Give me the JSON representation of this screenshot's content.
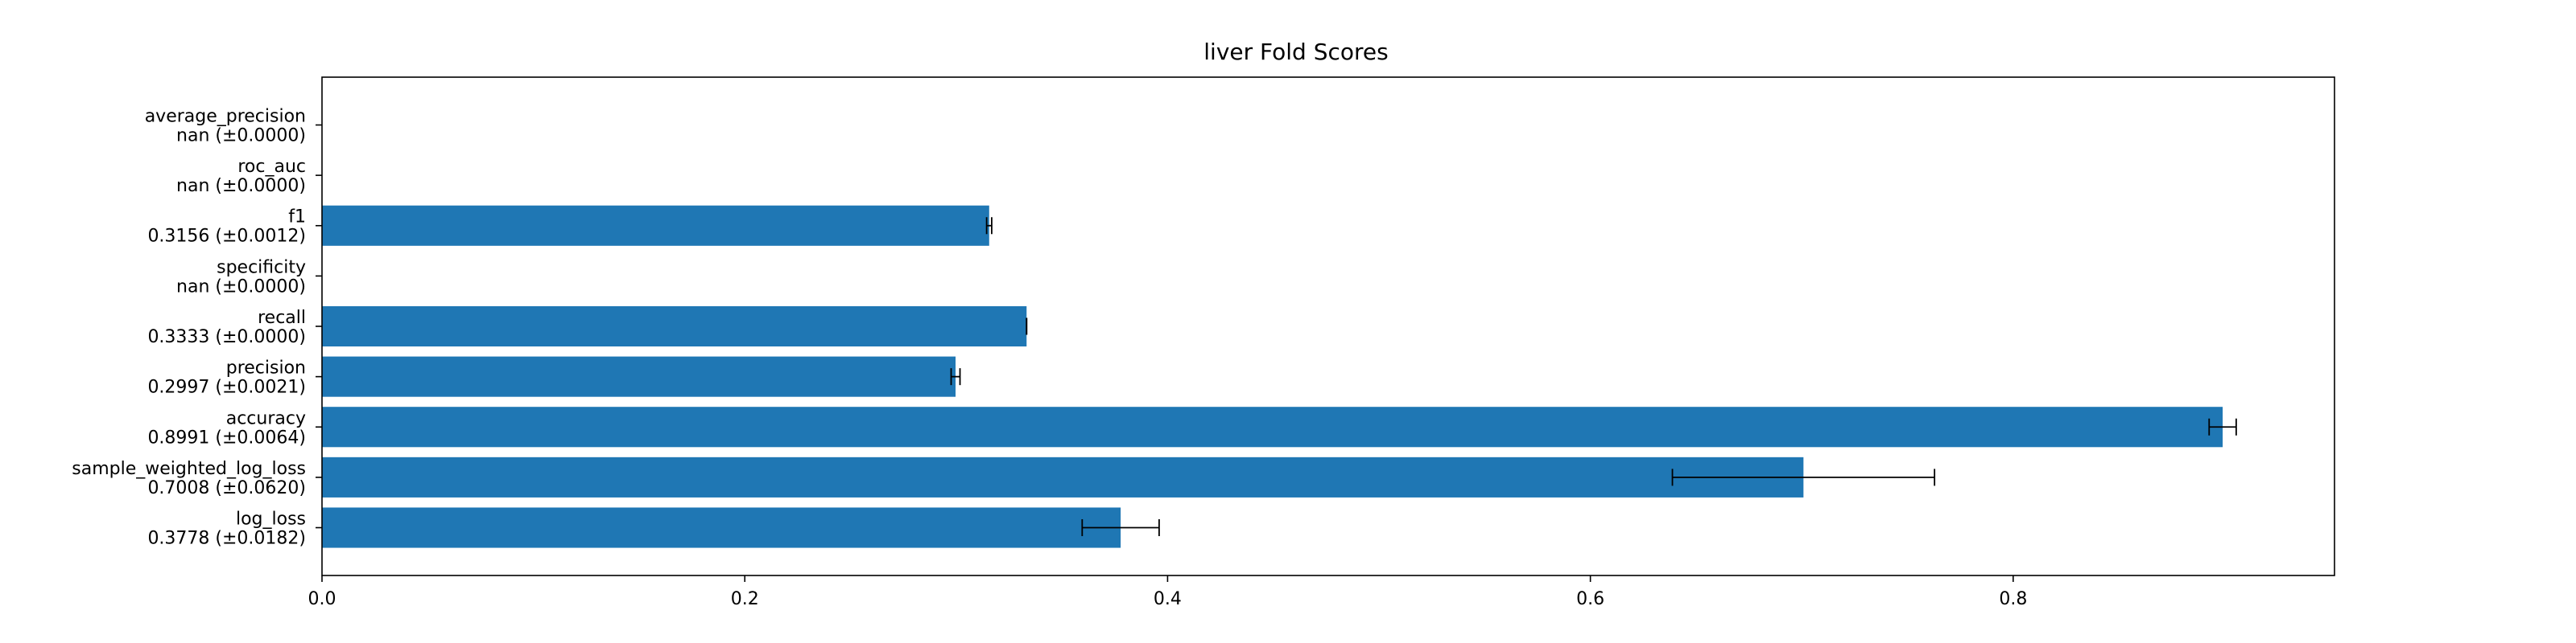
{
  "chart_data": {
    "type": "bar",
    "orientation": "horizontal",
    "title": "liver Fold Scores",
    "xlabel": "",
    "ylabel": "",
    "xlim": [
      0,
      0.952
    ],
    "xticks": [
      "0.0",
      "0.2",
      "0.4",
      "0.6",
      "0.8"
    ],
    "xtick_values": [
      0.0,
      0.2,
      0.4,
      0.6,
      0.8
    ],
    "bar_color": "#1f77b4",
    "categories": [
      {
        "name": "log_loss",
        "label": "0.3778 (±0.0182)",
        "value": 0.3778,
        "err": 0.0182
      },
      {
        "name": "sample_weighted_log_loss",
        "label": "0.7008 (±0.0620)",
        "value": 0.7008,
        "err": 0.062
      },
      {
        "name": "accuracy",
        "label": "0.8991 (±0.0064)",
        "value": 0.8991,
        "err": 0.0064
      },
      {
        "name": "precision",
        "label": "0.2997 (±0.0021)",
        "value": 0.2997,
        "err": 0.0021
      },
      {
        "name": "recall",
        "label": "0.3333 (±0.0000)",
        "value": 0.3333,
        "err": 0.0
      },
      {
        "name": "specificity",
        "label": "nan (±0.0000)",
        "value": null,
        "err": 0.0
      },
      {
        "name": "f1",
        "label": "0.3156 (±0.0012)",
        "value": 0.3156,
        "err": 0.0012
      },
      {
        "name": "roc_auc",
        "label": "nan (±0.0000)",
        "value": null,
        "err": 0.0
      },
      {
        "name": "average_precision",
        "label": "nan (±0.0000)",
        "value": null,
        "err": 0.0
      }
    ]
  }
}
